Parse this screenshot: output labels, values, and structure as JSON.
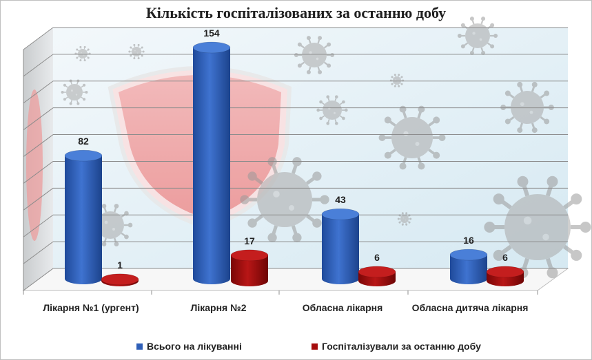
{
  "chart_data": {
    "type": "bar",
    "title": "Кількість госпіталізованих за останню добу",
    "categories": [
      "Лікарня №1 (ургент)",
      "Лікарня №2",
      "Обласна лікарня",
      "Обласна дитяча лікарня"
    ],
    "series": [
      {
        "name": "Всього на лікуванні",
        "values": [
          82,
          154,
          43,
          16
        ],
        "color": "#2f5fb8"
      },
      {
        "name": "Госпіталізували за останню добу",
        "values": [
          1,
          17,
          6,
          6
        ],
        "color": "#a50c0c"
      }
    ],
    "ylim": [
      0,
      180
    ],
    "grid": true,
    "legend": "bottom",
    "style": "3d-cylinder"
  },
  "background": {
    "decor": [
      "virus-icon",
      "shield-icon"
    ],
    "colors": {
      "wall": "#dfeef5",
      "shield": "#f2a3a3",
      "virus": "#9a9a9a"
    }
  }
}
